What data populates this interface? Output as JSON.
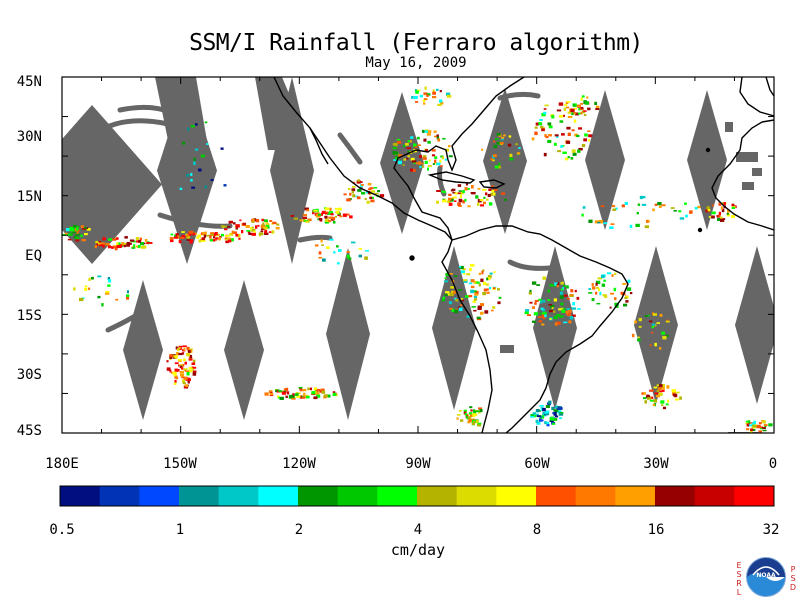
{
  "title": "SSM/I Rainfall (Ferraro algorithm)",
  "subtitle": "May 16, 2009",
  "map": {
    "lat_labels": [
      "45N",
      "30N",
      "15N",
      "EQ",
      "15S",
      "30S",
      "45S"
    ],
    "lon_labels": [
      "180E",
      "150W",
      "120W",
      "90W",
      "60W",
      "30W",
      "0"
    ],
    "lat_range": [
      -45,
      45
    ],
    "lon_range": [
      -180,
      0
    ],
    "gap_color": "#666666",
    "land_outline_color": "#000000"
  },
  "colorbar": {
    "tick_labels": [
      "0.5",
      "1",
      "2",
      "4",
      "8",
      "16",
      "32"
    ],
    "units": "cm/day",
    "colors": [
      "#000e80",
      "#0033b5",
      "#0048ff",
      "#009494",
      "#00c8c8",
      "#00ffff",
      "#009600",
      "#00c800",
      "#00ff00",
      "#b4b400",
      "#dcdc00",
      "#ffff00",
      "#ff5000",
      "#ff7800",
      "#ffa000",
      "#960000",
      "#c80000",
      "#ff0000"
    ]
  },
  "logo": {
    "left_letters": "ESRL",
    "right_letters": "PSD",
    "center_text": "NOAA"
  }
}
